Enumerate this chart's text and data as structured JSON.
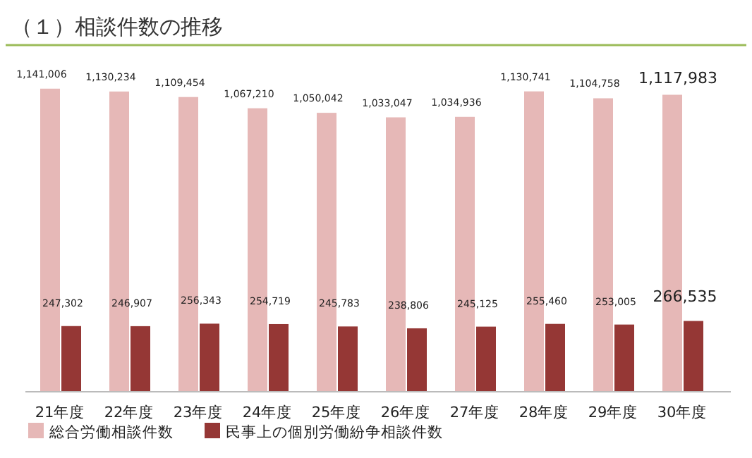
{
  "chart_data": {
    "type": "bar",
    "title": "（１）相談件数の推移",
    "categories": [
      "21年度",
      "22年度",
      "23年度",
      "24年度",
      "25年度",
      "26年度",
      "27年度",
      "28年度",
      "29年度",
      "30年度"
    ],
    "series": [
      {
        "name": "総合労働相談件数",
        "color": "#e6b8b7",
        "values": [
          1141006,
          1130234,
          1109454,
          1067210,
          1050042,
          1033047,
          1034936,
          1130741,
          1104758,
          1117983
        ],
        "value_labels": [
          "1,141,006",
          "1,130,234",
          "1,109,454",
          "1,067,210",
          "1,050,042",
          "1,033,047",
          "1,034,936",
          "1,130,741",
          "1,104,758",
          "1,117,983"
        ]
      },
      {
        "name": "民事上の個別労働紛争相談件数",
        "color": "#953735",
        "values": [
          247302,
          246907,
          256343,
          254719,
          245783,
          238806,
          245125,
          255460,
          253005,
          266535
        ],
        "value_labels": [
          "247,302",
          "246,907",
          "256,343",
          "254,719",
          "245,783",
          "238,806",
          "245,125",
          "255,460",
          "253,005",
          "266,535"
        ]
      }
    ],
    "legend": "bottom left"
  }
}
